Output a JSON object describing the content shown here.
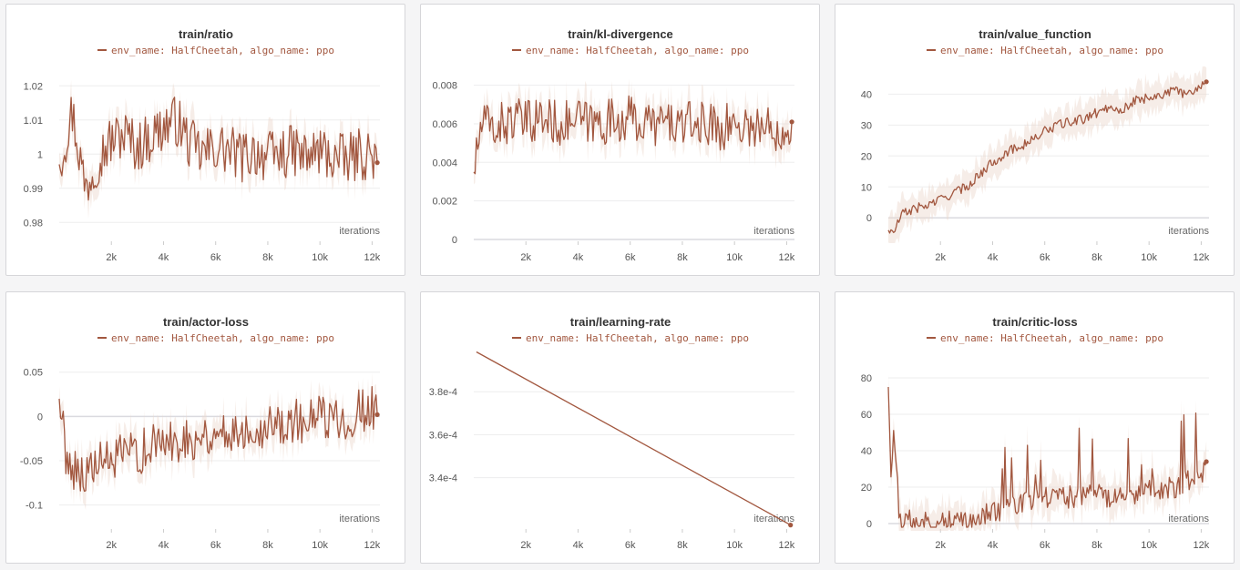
{
  "colors": {
    "series": "#a2573f",
    "band": "#ecd6cc",
    "grid": "#ededee",
    "zero": "#dadadf"
  },
  "legend_text": "env_name: HalfCheetah, algo_name: ppo",
  "chart_data": [
    {
      "type": "line",
      "title": "train/ratio",
      "legend": "env_name: HalfCheetah, algo_name: ppo",
      "xlabel": "iterations",
      "ylabel": "",
      "xlim": [
        0,
        12300
      ],
      "ylim": [
        0.975,
        1.023
      ],
      "xticks": [
        2000,
        4000,
        6000,
        8000,
        10000,
        12000
      ],
      "xtick_labels": [
        "2k",
        "4k",
        "6k",
        "8k",
        "10k",
        "12k"
      ],
      "yticks": [
        0.98,
        0.99,
        1,
        1.01,
        1.02
      ],
      "ytick_labels": [
        "0.98",
        "0.99",
        "1",
        "1.01",
        "1.02"
      ],
      "zero_line": null,
      "band": true,
      "series": [
        {
          "name": "env_name: HalfCheetah, algo_name: ppo",
          "x": [
            0,
            500,
            1000,
            1500,
            2000,
            2500,
            3000,
            3500,
            4000,
            4500,
            5000,
            5500,
            6000,
            6500,
            7000,
            7500,
            8000,
            8500,
            9000,
            9500,
            10000,
            10500,
            11000,
            11500,
            12000,
            12200
          ],
          "y": [
            0.997,
            1.0125,
            0.99,
            0.999,
            1.004,
            1.006,
            1.002,
            1.005,
            1.008,
            1.01,
            1.003,
            1.0,
            1.002,
            1.001,
            0.999,
            1.001,
            0.999,
            1.0,
            1.001,
            0.999,
            1.001,
            0.999,
            0.998,
            1.0,
            1.0,
            0.9975
          ]
        }
      ]
    },
    {
      "type": "line",
      "title": "train/kl-divergence",
      "legend": "env_name: HalfCheetah, algo_name: ppo",
      "xlabel": "iterations",
      "ylabel": "",
      "xlim": [
        0,
        12300
      ],
      "ylim": [
        0,
        0.0085
      ],
      "xticks": [
        2000,
        4000,
        6000,
        8000,
        10000,
        12000
      ],
      "xtick_labels": [
        "2k",
        "4k",
        "6k",
        "8k",
        "10k",
        "12k"
      ],
      "yticks": [
        0,
        0.002,
        0.004,
        0.006,
        0.008
      ],
      "ytick_labels": [
        "0",
        "0.002",
        "0.004",
        "0.006",
        "0.008"
      ],
      "zero_line": 0,
      "band": true,
      "series": [
        {
          "name": "env_name: HalfCheetah, algo_name: ppo",
          "x": [
            0,
            300,
            800,
            1500,
            2000,
            2500,
            3000,
            3500,
            4000,
            4500,
            5000,
            5500,
            6000,
            6500,
            7000,
            7500,
            8000,
            8500,
            9000,
            9500,
            10000,
            10500,
            11000,
            11500,
            12000,
            12200
          ],
          "y": [
            0.0035,
            0.006,
            0.0058,
            0.0062,
            0.006,
            0.0063,
            0.0061,
            0.006,
            0.0062,
            0.006,
            0.0061,
            0.0062,
            0.0063,
            0.006,
            0.006,
            0.0061,
            0.0059,
            0.006,
            0.006,
            0.0058,
            0.006,
            0.0059,
            0.0058,
            0.0057,
            0.0058,
            0.0061
          ]
        }
      ]
    },
    {
      "type": "line",
      "title": "train/value_function",
      "legend": "env_name: HalfCheetah, algo_name: ppo",
      "xlabel": "iterations",
      "ylabel": "",
      "xlim": [
        0,
        12300
      ],
      "ylim": [
        -7,
        46
      ],
      "xticks": [
        2000,
        4000,
        6000,
        8000,
        10000,
        12000
      ],
      "xtick_labels": [
        "2k",
        "4k",
        "6k",
        "8k",
        "10k",
        "12k"
      ],
      "yticks": [
        0,
        10,
        20,
        30,
        40
      ],
      "ytick_labels": [
        "0",
        "10",
        "20",
        "30",
        "40"
      ],
      "zero_line": 0,
      "band": true,
      "series": [
        {
          "name": "env_name: HalfCheetah, algo_name: ppo",
          "x": [
            0,
            200,
            500,
            1000,
            1500,
            2000,
            2500,
            3000,
            3500,
            4000,
            4500,
            5000,
            5500,
            6000,
            6500,
            7000,
            7500,
            8000,
            8500,
            9000,
            9500,
            10000,
            10500,
            11000,
            11500,
            12000,
            12200
          ],
          "y": [
            -4,
            -5,
            1,
            3,
            4,
            6,
            8,
            10,
            14,
            18,
            21,
            23,
            25,
            28,
            30,
            31,
            32,
            34,
            36,
            35,
            38,
            39,
            40,
            41,
            40,
            43,
            44
          ]
        }
      ]
    },
    {
      "type": "line",
      "title": "train/actor-loss",
      "legend": "env_name: HalfCheetah, algo_name: ppo",
      "xlabel": "iterations",
      "ylabel": "",
      "xlim": [
        0,
        12300
      ],
      "ylim": [
        -0.125,
        0.06
      ],
      "xticks": [
        2000,
        4000,
        6000,
        8000,
        10000,
        12000
      ],
      "xtick_labels": [
        "2k",
        "4k",
        "6k",
        "8k",
        "10k",
        "12k"
      ],
      "yticks": [
        -0.1,
        -0.05,
        0,
        0.05
      ],
      "ytick_labels": [
        "-0.1",
        "-0.05",
        "0",
        "0.05"
      ],
      "zero_line": 0,
      "band": true,
      "series": [
        {
          "name": "env_name: HalfCheetah, algo_name: ppo",
          "x": [
            0,
            300,
            700,
            1000,
            1500,
            2000,
            2500,
            3000,
            3500,
            4000,
            4500,
            5000,
            5500,
            6000,
            6500,
            7000,
            7500,
            8000,
            8500,
            9000,
            9500,
            10000,
            10500,
            11000,
            11500,
            12000,
            12200
          ],
          "y": [
            0.02,
            -0.05,
            -0.06,
            -0.065,
            -0.055,
            -0.05,
            -0.045,
            -0.04,
            -0.035,
            -0.03,
            -0.027,
            -0.025,
            -0.022,
            -0.02,
            -0.018,
            -0.015,
            -0.012,
            -0.01,
            -0.008,
            -0.006,
            -0.005,
            -0.003,
            -0.002,
            0.0,
            0.005,
            0.01,
            0.002
          ]
        }
      ]
    },
    {
      "type": "line",
      "title": "train/learning-rate",
      "legend": "env_name: HalfCheetah, algo_name: ppo",
      "xlabel": "iterations",
      "ylabel": "",
      "xlim": [
        0,
        12300
      ],
      "ylim": [
        0.000317,
        0.0004
      ],
      "xticks": [
        2000,
        4000,
        6000,
        8000,
        10000,
        12000
      ],
      "xtick_labels": [
        "2k",
        "4k",
        "6k",
        "8k",
        "10k",
        "12k"
      ],
      "yticks": [
        0.00034,
        0.00036,
        0.00038
      ],
      "ytick_labels": [
        "3.4e-4",
        "3.6e-4",
        "3.8e-4"
      ],
      "zero_line": null,
      "band": false,
      "series": [
        {
          "name": "env_name: HalfCheetah, algo_name: ppo",
          "x": [
            100,
            12150
          ],
          "y": [
            0.0003985,
            0.000318
          ]
        }
      ]
    },
    {
      "type": "line",
      "title": "train/critic-loss",
      "legend": "env_name: HalfCheetah, algo_name: ppo",
      "xlabel": "iterations",
      "ylabel": "",
      "xlim": [
        0,
        12300
      ],
      "ylim": [
        -2,
        88
      ],
      "xticks": [
        2000,
        4000,
        6000,
        8000,
        10000,
        12000
      ],
      "xtick_labels": [
        "2k",
        "4k",
        "6k",
        "8k",
        "10k",
        "12k"
      ],
      "yticks": [
        0,
        20,
        40,
        60,
        80
      ],
      "ytick_labels": [
        "0",
        "20",
        "40",
        "60",
        "80"
      ],
      "zero_line": 0,
      "band": true,
      "series": [
        {
          "name": "env_name: HalfCheetah, algo_name: ppo",
          "x": [
            0,
            100,
            200,
            300,
            400,
            600,
            1000,
            1500,
            2000,
            2500,
            3000,
            3500,
            4000,
            4500,
            5000,
            5500,
            6000,
            6500,
            7000,
            7500,
            8000,
            8500,
            9000,
            9500,
            10000,
            10500,
            11000,
            11500,
            12000,
            12200
          ],
          "y": [
            75,
            30,
            45,
            40,
            3,
            2,
            1,
            1,
            2,
            1,
            3,
            4,
            6,
            8,
            10,
            12,
            14,
            13,
            15,
            14,
            16,
            15,
            18,
            17,
            19,
            18,
            20,
            25,
            22,
            34
          ]
        }
      ]
    }
  ]
}
